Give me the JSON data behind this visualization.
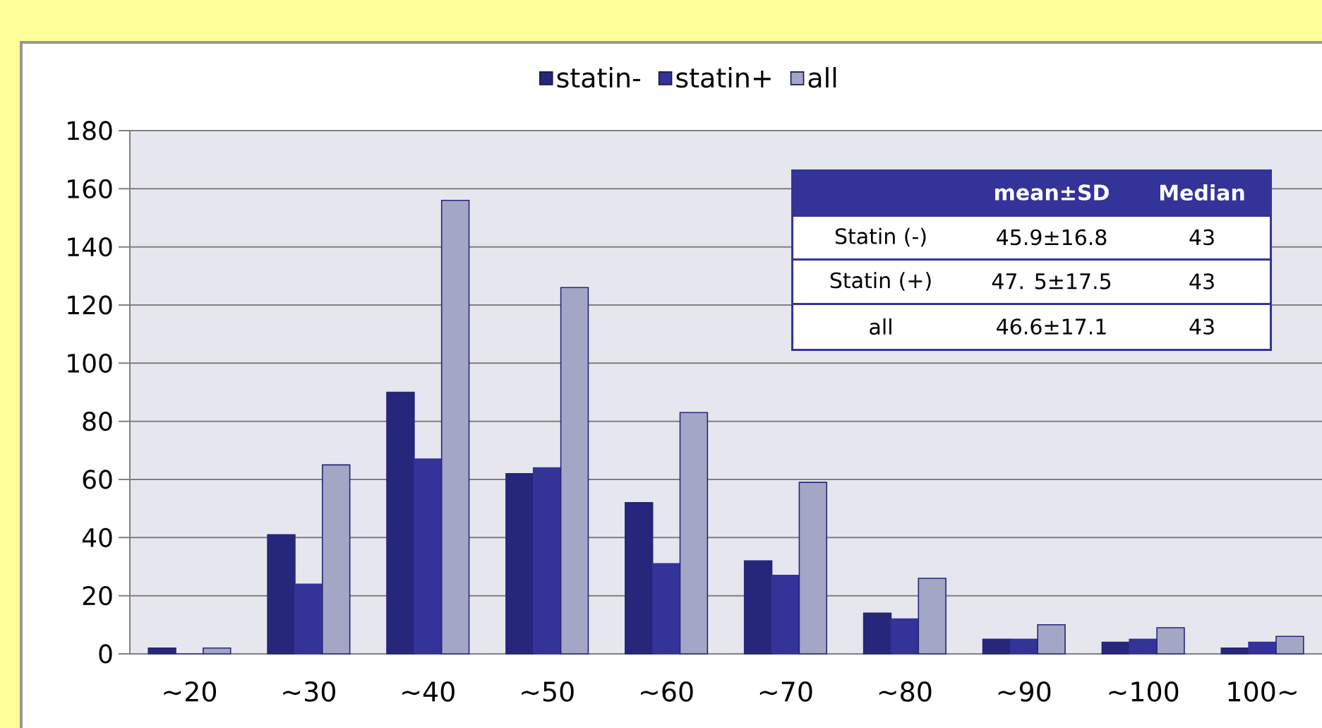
{
  "chart_data": {
    "type": "bar",
    "categories": [
      "∼20",
      "∼30",
      "∼40",
      "∼50",
      "∼60",
      "∼70",
      "∼80",
      "∼90",
      "∼100",
      "100∼"
    ],
    "series": [
      {
        "name": "statin-",
        "color": "#26267a",
        "values": [
          2,
          41,
          90,
          62,
          52,
          32,
          14,
          5,
          4,
          2
        ]
      },
      {
        "name": "statin+",
        "color": "#333399",
        "values": [
          0,
          24,
          67,
          64,
          31,
          27,
          12,
          5,
          5,
          4
        ]
      },
      {
        "name": "all",
        "color": "#a4a6c6",
        "values": [
          2,
          65,
          156,
          126,
          83,
          59,
          26,
          10,
          9,
          6
        ]
      }
    ],
    "ylim": [
      0,
      180
    ],
    "yticks": [
      0,
      20,
      40,
      60,
      80,
      100,
      120,
      140,
      160,
      180
    ],
    "grid": "y",
    "legend": "top",
    "annotations": [
      "mean±SD",
      "Median",
      "Statin (-)",
      "45.9±16.8",
      "43",
      "Statin (+)",
      "47. 5±17.5",
      "43",
      "all",
      "46.6±17.1",
      "43"
    ]
  }
}
